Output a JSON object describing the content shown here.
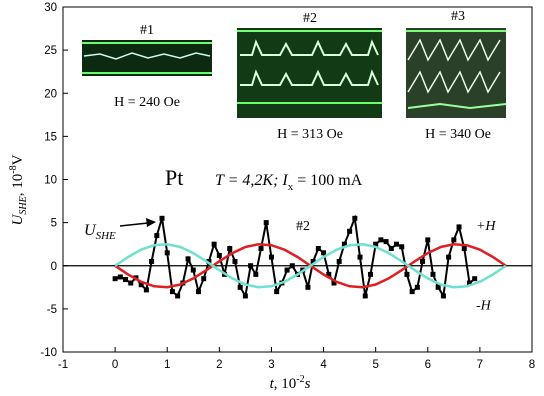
{
  "chart_data": {
    "type": "line",
    "x_label": {
      "parts": [
        "t",
        ", 10",
        "-2",
        "s"
      ]
    },
    "y_label": {
      "parts": [
        "U",
        "SHE",
        ", 10",
        "-8",
        "V"
      ]
    },
    "xlim": [
      -1,
      8
    ],
    "xticks": [
      -1,
      0,
      1,
      2,
      3,
      4,
      5,
      6,
      7,
      8
    ],
    "ylim": [
      -10,
      30
    ],
    "yticks": [
      -10,
      -5,
      0,
      5,
      10,
      15,
      20,
      25,
      30
    ],
    "series": [
      {
        "color": "#000000",
        "marker": "square",
        "x": [
          0,
          0.1,
          0.2,
          0.3,
          0.4,
          0.5,
          0.6,
          0.7,
          0.8,
          0.9,
          1.0,
          1.1,
          1.2,
          1.3,
          1.4,
          1.5,
          1.6,
          1.7,
          1.8,
          1.9,
          2.0,
          2.1,
          2.2,
          2.3,
          2.4,
          2.5,
          2.6,
          2.7,
          2.8,
          2.9,
          3.0,
          3.1,
          3.2,
          3.3,
          3.4,
          3.5,
          3.6,
          3.7,
          3.8,
          3.9,
          4.0,
          4.1,
          4.2,
          4.3,
          4.4,
          4.5,
          4.6,
          4.7,
          4.8,
          4.9,
          5.0,
          5.1,
          5.2,
          5.3,
          5.4,
          5.5,
          5.6,
          5.7,
          5.8,
          5.9,
          6.0,
          6.1,
          6.2,
          6.3,
          6.4,
          6.5,
          6.6,
          6.7,
          6.8,
          6.9
        ],
        "values": [
          -1.5,
          -1.3,
          -1.6,
          -2,
          -1.4,
          -2.2,
          -2.8,
          0.5,
          3.5,
          5.5,
          1.5,
          -3,
          -3.5,
          -2,
          0.8,
          -0.5,
          -3,
          -1.5,
          0.5,
          2.5,
          1.2,
          -1,
          2,
          0.5,
          -2.5,
          -3.5,
          0,
          -1,
          2,
          5,
          1,
          -3,
          -2,
          -0.5,
          0,
          -1,
          -0.5,
          -2.5,
          0.5,
          2,
          1.5,
          -1,
          -2,
          0.5,
          2.5,
          4,
          5.5,
          1,
          -3.5,
          -1,
          2.5,
          3,
          2.8,
          2,
          2.5,
          2.2,
          -1,
          -3,
          -2.5,
          0.5,
          3,
          -1,
          -2.5,
          -3.5,
          1,
          3,
          4.5,
          2,
          -2,
          -1.5
        ]
      },
      {
        "name": "+H",
        "color": "#e02020",
        "x": [
          0,
          0.25,
          0.5,
          0.75,
          1,
          1.25,
          1.5,
          1.75,
          2,
          2.25,
          2.5,
          2.75,
          3,
          3.25,
          3.5,
          3.75,
          4,
          4.25,
          4.5,
          4.75,
          5,
          5.25,
          5.5,
          5.75,
          6,
          6.25,
          6.5,
          6.75,
          7,
          7.25,
          7.5
        ],
        "values": [
          0,
          -1.02,
          -1.86,
          -2.38,
          -2.49,
          -2.17,
          -1.47,
          -0.52,
          0.52,
          1.47,
          2.17,
          2.49,
          2.38,
          1.86,
          1.02,
          0,
          -1.02,
          -1.86,
          -2.38,
          -2.49,
          -2.17,
          -1.47,
          -0.52,
          0.52,
          1.47,
          2.17,
          2.49,
          2.38,
          1.86,
          1.02,
          0
        ]
      },
      {
        "name": "-H",
        "color": "#70e0d0",
        "x": [
          0,
          0.25,
          0.5,
          0.75,
          1,
          1.25,
          1.5,
          1.75,
          2,
          2.25,
          2.5,
          2.75,
          3,
          3.25,
          3.5,
          3.75,
          4,
          4.25,
          4.5,
          4.75,
          5,
          5.25,
          5.5,
          5.75,
          6,
          6.25,
          6.5,
          6.75,
          7,
          7.25,
          7.5
        ],
        "values": [
          0,
          1.02,
          1.86,
          2.38,
          2.49,
          2.17,
          1.47,
          0.52,
          -0.52,
          -1.47,
          -2.17,
          -2.49,
          -2.38,
          -1.86,
          -1.02,
          0,
          1.02,
          1.86,
          2.38,
          2.49,
          2.17,
          1.47,
          0.52,
          -0.52,
          -1.47,
          -2.17,
          -2.49,
          -2.38,
          -1.86,
          -1.02,
          0
        ]
      }
    ],
    "annotations": {
      "sample": "Pt",
      "conditions": [
        "T = 4,2K; I",
        "x",
        " = 100 mA"
      ],
      "mid_label": "#2",
      "signal": [
        "U",
        "SHE"
      ]
    },
    "insets": [
      {
        "label": "#1",
        "field": "H = 240 Oe"
      },
      {
        "label": "#2",
        "field": "H = 313 Oe"
      },
      {
        "label": "#3",
        "field": "H = 340 Oe"
      }
    ]
  }
}
